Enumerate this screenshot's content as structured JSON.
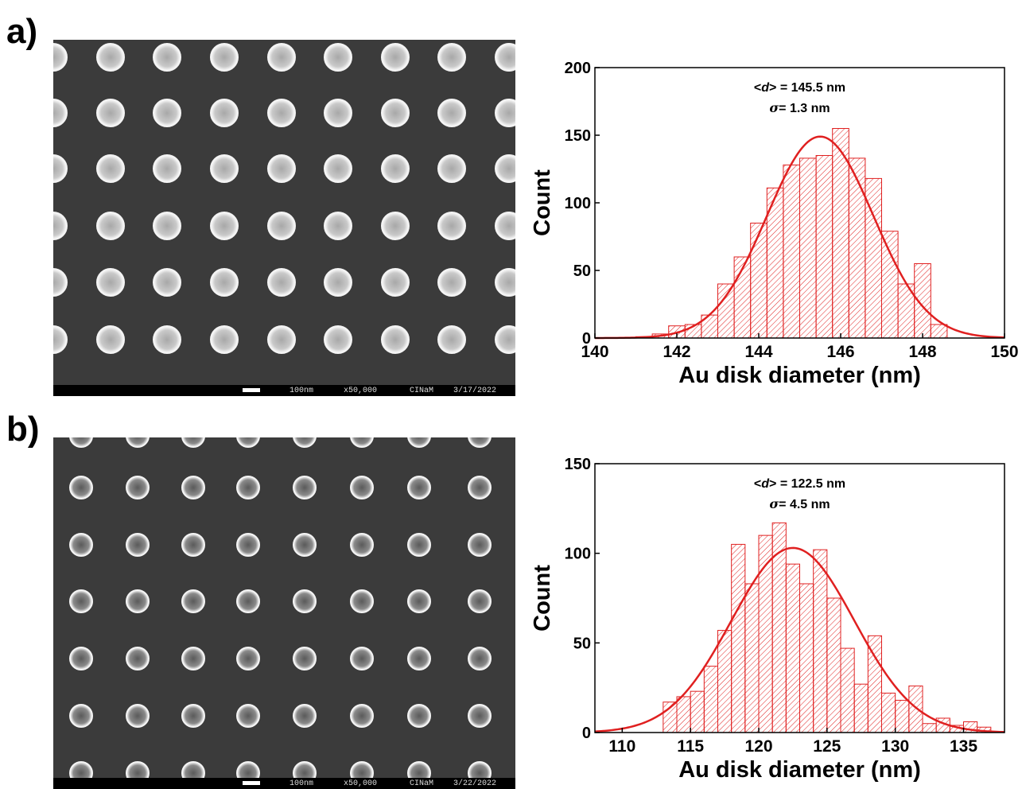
{
  "panels": [
    {
      "letter": "a)",
      "sem": {
        "scale": "100nm",
        "magnification": "x50,000",
        "lab": "CINaM",
        "date": "3/17/2022"
      }
    },
    {
      "letter": "b)",
      "sem": {
        "scale": "100nm",
        "magnification": "x50,000",
        "lab": "CINaM",
        "date": "3/22/2022"
      }
    }
  ],
  "colors": {
    "accent": "#e02020",
    "sem_bg": "#3b3b3b"
  },
  "chart_data": [
    {
      "type": "bar",
      "xlabel": "Au disk diameter (nm)",
      "ylabel": "Count",
      "xlim": [
        140,
        150
      ],
      "ylim": [
        0,
        200
      ],
      "xticks": [
        140,
        142,
        144,
        146,
        148,
        150
      ],
      "yticks": [
        0,
        50,
        100,
        150,
        200
      ],
      "annotation_mean_prefix": "<",
      "annotation_mean_var": "d",
      "annotation_mean_suffix": "> = 145.5 nm",
      "annotation_sigma_var": "σ",
      "annotation_sigma_suffix": "= 1.3 nm",
      "fit": {
        "type": "gaussian",
        "mean": 145.5,
        "sigma": 1.3,
        "peak": 149
      },
      "bin_width": 0.4,
      "bin_starts": [
        140.6,
        141.0,
        141.4,
        141.8,
        142.2,
        142.6,
        143.0,
        143.4,
        143.8,
        144.2,
        144.6,
        145.0,
        145.4,
        145.8,
        146.2,
        146.6,
        147.0,
        147.4,
        147.8,
        148.2
      ],
      "values": [
        0,
        1,
        3,
        9,
        10,
        17,
        40,
        60,
        85,
        111,
        128,
        133,
        135,
        155,
        133,
        118,
        79,
        40,
        55,
        10
      ]
    },
    {
      "type": "bar",
      "xlabel": "Au disk diameter (nm)",
      "ylabel": "Count",
      "xlim": [
        108,
        138
      ],
      "ylim": [
        0,
        150
      ],
      "xticks": [
        110,
        115,
        120,
        125,
        130,
        135
      ],
      "yticks": [
        0,
        50,
        100,
        150
      ],
      "annotation_mean_prefix": "<",
      "annotation_mean_var": "d",
      "annotation_mean_suffix": "> = 122.5 nm",
      "annotation_sigma_var": "σ",
      "annotation_sigma_suffix": "= 4.5 nm",
      "fit": {
        "type": "gaussian",
        "mean": 122.5,
        "sigma": 4.5,
        "peak": 103
      },
      "bin_width": 1.0,
      "bin_starts": [
        113,
        114,
        115,
        116,
        117,
        118,
        119,
        120,
        121,
        122,
        123,
        124,
        125,
        126,
        127,
        128,
        129,
        130,
        131,
        132,
        133,
        134,
        135,
        136
      ],
      "values": [
        17,
        20,
        23,
        37,
        57,
        105,
        83,
        110,
        117,
        94,
        83,
        102,
        75,
        47,
        27,
        54,
        22,
        18,
        26,
        5,
        8,
        4,
        6,
        3
      ]
    }
  ]
}
